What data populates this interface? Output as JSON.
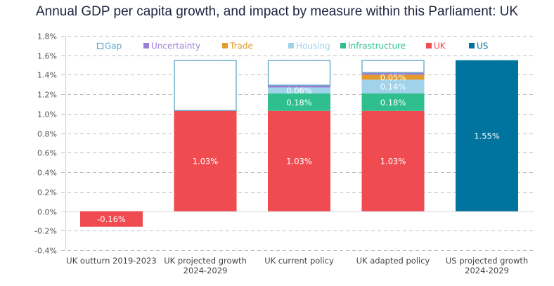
{
  "chart_data": {
    "type": "bar",
    "stacked": true,
    "title": "Annual GDP per capita growth, and impact by measure within this Parliament: UK",
    "xlabel": "",
    "ylabel": "",
    "ylim": [
      -0.4,
      1.8
    ],
    "yticks": [
      -0.4,
      -0.2,
      0.0,
      0.2,
      0.4,
      0.6,
      0.8,
      1.0,
      1.2,
      1.4,
      1.6,
      1.8
    ],
    "ytick_labels": [
      "-0.4%",
      "-0.2%",
      "0.0%",
      "0.2%",
      "0.4%",
      "0.6%",
      "0.8%",
      "1.0%",
      "1.2%",
      "1.4%",
      "1.6%",
      "1.8%"
    ],
    "grid": true,
    "legend_position": "top",
    "categories": [
      [
        "UK outturn 2019-2023"
      ],
      [
        "UK projected  growth",
        "2024-2029"
      ],
      [
        "UK current policy"
      ],
      [
        "UK adapted policy"
      ],
      [
        "US projected growth",
        "2024-2029"
      ]
    ],
    "series": [
      {
        "name": "UK",
        "color": "#ef4b50",
        "values": [
          -0.16,
          1.03,
          1.03,
          1.03,
          0
        ],
        "labels": [
          "-0.16%",
          "1.03%",
          "1.03%",
          "1.03%",
          ""
        ]
      },
      {
        "name": "Infrastructure",
        "color": "#2fbf8e",
        "values": [
          0,
          0,
          0.18,
          0.18,
          0
        ],
        "labels": [
          "",
          "",
          "0.18%",
          "0.18%",
          ""
        ]
      },
      {
        "name": "Housing",
        "color": "#a0d2ea",
        "values": [
          0,
          0,
          0.06,
          0.14,
          0
        ],
        "labels": [
          "",
          "",
          "0.06%",
          "0.14%",
          ""
        ]
      },
      {
        "name": "Trade",
        "color": "#e39b2c",
        "values": [
          0,
          0,
          0,
          0.05,
          0
        ],
        "labels": [
          "",
          "",
          "",
          "0.05%",
          ""
        ]
      },
      {
        "name": "Uncertainty",
        "color": "#9b80d6",
        "values": [
          0,
          0,
          0.02,
          0.02,
          0
        ],
        "labels": [
          "",
          "",
          "",
          "",
          ""
        ]
      },
      {
        "name": "Gap",
        "color": "#5aa6c6",
        "outline": true,
        "values": [
          0,
          0.52,
          0.26,
          0.13,
          0
        ],
        "labels": [
          "",
          "",
          "",
          "",
          ""
        ]
      },
      {
        "name": "US",
        "color": "#00739f",
        "values": [
          0,
          0,
          0,
          0,
          1.55
        ],
        "labels": [
          "",
          "",
          "",
          "",
          "1.55%"
        ]
      }
    ],
    "legend": [
      {
        "name": "Gap",
        "color": "#5aa6c6",
        "outline": true
      },
      {
        "name": "Uncertainty",
        "color": "#9b80d6"
      },
      {
        "name": "Trade",
        "color": "#e39b2c"
      },
      {
        "name": "Housing",
        "color": "#a0d2ea"
      },
      {
        "name": "Infrastructure",
        "color": "#2fbf8e"
      },
      {
        "name": "UK",
        "color": "#ef4b50"
      },
      {
        "name": "US",
        "color": "#00739f"
      }
    ]
  }
}
